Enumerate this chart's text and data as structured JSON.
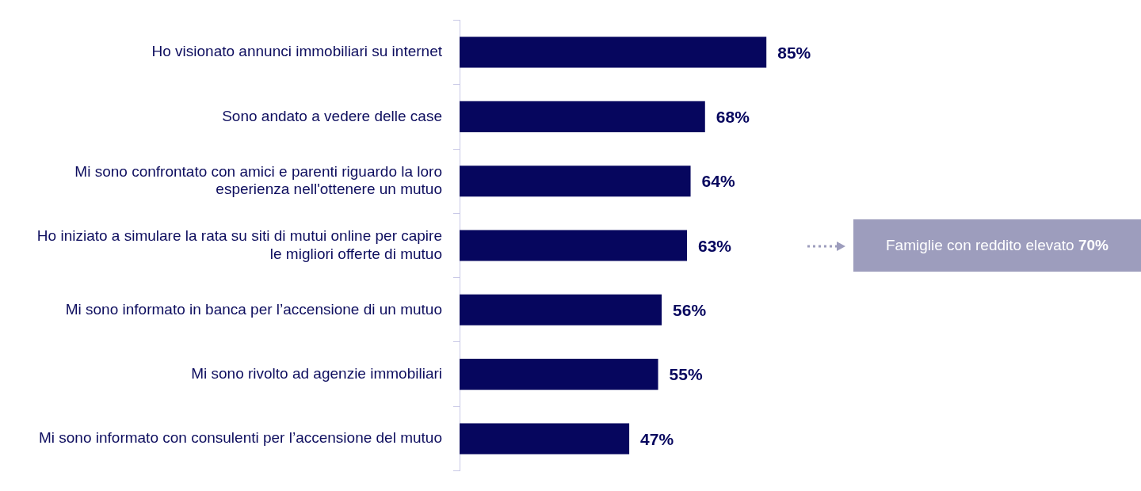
{
  "chart_data": {
    "type": "bar",
    "orientation": "horizontal",
    "categories": [
      "Ho visionato annunci immobiliari su internet",
      "Sono andato a vedere delle case",
      "Mi sono confrontato con amici e parenti riguardo la loro esperienza nell'ottenere un mutuo",
      "Ho iniziato a simulare la rata su siti di mutui online per capire le migliori offerte di mutuo",
      "Mi sono informato in banca per l’accensione di un mutuo",
      "Mi sono rivolto ad agenzie immobiliari",
      "Mi sono informato con consulenti per l’accensione del mutuo"
    ],
    "values": [
      85,
      68,
      64,
      63,
      56,
      55,
      47
    ],
    "value_labels": [
      "85%",
      "68%",
      "64%",
      "63%",
      "56%",
      "55%",
      "47%"
    ],
    "color": "#06065e",
    "legend": false,
    "annotations": [
      "Famiglie con reddito elevato 70%"
    ]
  }
}
